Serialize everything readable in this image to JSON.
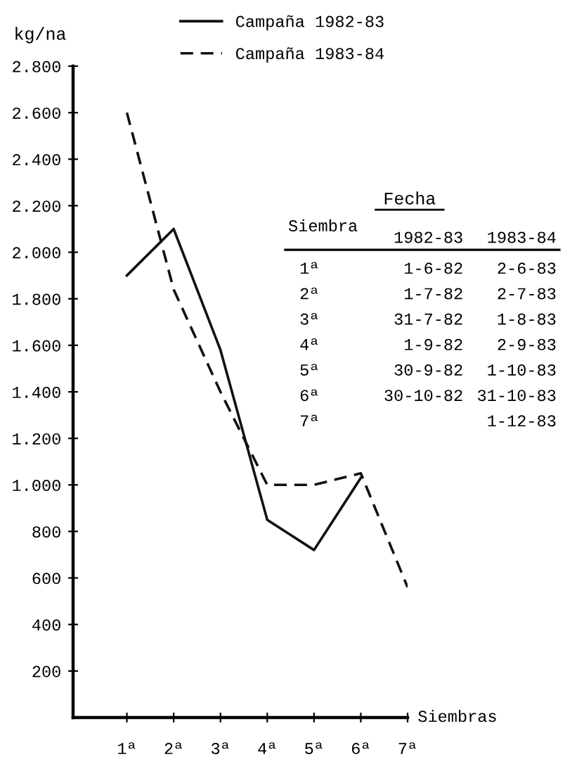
{
  "chart_data": {
    "type": "line",
    "ylabel": "kg/na",
    "xlabel": "Siembras",
    "categories": [
      "1ª",
      "2ª",
      "3ª",
      "4ª",
      "5ª",
      "6ª",
      "7ª"
    ],
    "series": [
      {
        "name": "Campaña 1982-83",
        "color": "#111111",
        "line_style": "solid",
        "values": [
          1900,
          2100,
          1580,
          850,
          720,
          1030,
          null
        ]
      },
      {
        "name": "Campaña 1983-84",
        "color": "#111111",
        "line_style": "dashed",
        "values": [
          2600,
          1840,
          1400,
          1000,
          1000,
          1050,
          560
        ]
      }
    ],
    "ylim": [
      0,
      2800
    ],
    "yticks": [
      200,
      400,
      600,
      800,
      {
        "value": 1000,
        "label": "1.000"
      },
      {
        "value": 1200,
        "label": "1.200"
      },
      {
        "value": 1400,
        "label": "1.400"
      },
      {
        "value": 1600,
        "label": "1.600"
      },
      {
        "value": 1800,
        "label": "1.800"
      },
      {
        "value": 2000,
        "label": "2.000"
      },
      {
        "value": 2200,
        "label": "2.200"
      },
      {
        "value": 2400,
        "label": "2.400"
      },
      {
        "value": 2600,
        "label": "2.600"
      },
      {
        "value": 2800,
        "label": "2.800"
      }
    ],
    "legend": "top",
    "marker": "none",
    "annotations": [
      "Fecha",
      "Siembra",
      "1982-83",
      "1983-84",
      "1ª",
      "1-6-82",
      "2-6-83",
      "2ª",
      "1-7-82",
      "2-7-83",
      "3ª",
      "31-7-82",
      "1-8-83",
      "4ª",
      "1-9-82",
      "2-9-83",
      "5ª",
      "30-9-82",
      "1-10-83",
      "6ª",
      "30-10-82",
      "31-10-83",
      "7ª",
      "1-12-83"
    ]
  }
}
